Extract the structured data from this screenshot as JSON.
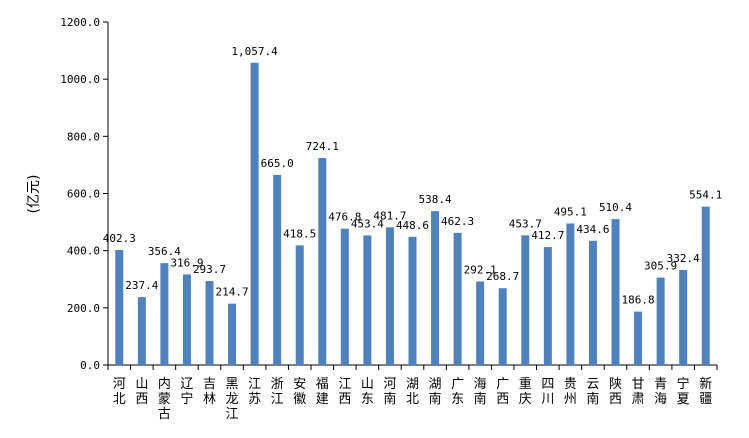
{
  "chart_data": {
    "type": "bar",
    "ylabel": "(亿元)",
    "ylim": [
      0,
      1200
    ],
    "yticks": [
      "0.0",
      "200.0",
      "400.0",
      "600.0",
      "800.0",
      "1000.0",
      "1200.0"
    ],
    "bar_color": "#4f81bd",
    "grid": false,
    "categories": [
      "河北",
      "山西",
      "内蒙古",
      "辽宁",
      "吉林",
      "黑龙江",
      "江苏",
      "浙江",
      "安徽",
      "福建",
      "江西",
      "山东",
      "河南",
      "湖北",
      "湖南",
      "广东",
      "海南",
      "广西",
      "重庆",
      "四川",
      "贵州",
      "云南",
      "陕西",
      "甘肃",
      "青海",
      "宁夏",
      "新疆"
    ],
    "values": [
      402.3,
      237.4,
      356.4,
      316.9,
      293.7,
      214.7,
      1057.4,
      665.0,
      418.5,
      724.1,
      476.8,
      453.4,
      481.7,
      448.6,
      538.4,
      462.3,
      292.1,
      268.7,
      453.7,
      412.7,
      495.1,
      434.6,
      510.4,
      186.8,
      305.9,
      332.4,
      554.1
    ],
    "labels": [
      "402.3",
      "237.4",
      "356.4",
      "316.9",
      "293.7",
      "214.7",
      "1,057.4",
      "665.0",
      "418.5",
      "724.1",
      "476.8",
      "453.4",
      "481.7",
      "448.6",
      "538.4",
      "462.3",
      "292.1",
      "268.7",
      "453.7",
      "412.7",
      "495.1",
      "434.6",
      "510.4",
      "186.8",
      "305.9",
      "332.4",
      "554.1"
    ]
  }
}
